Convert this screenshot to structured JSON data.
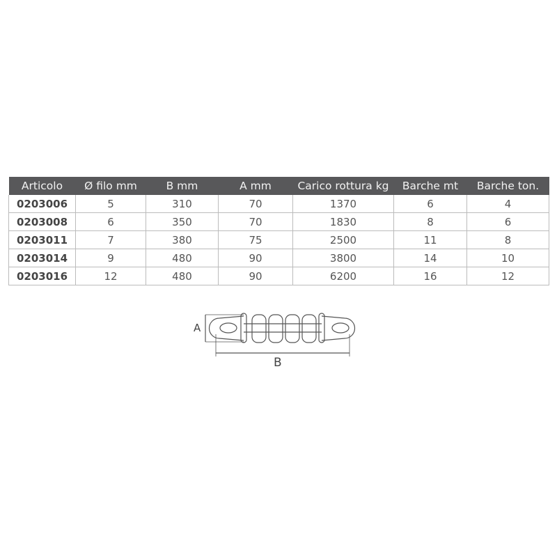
{
  "table": {
    "headers": [
      "Articolo",
      "Ø filo mm",
      "B mm",
      "A mm",
      "Carico rottura kg",
      "Barche mt",
      "Barche ton."
    ],
    "rows": [
      [
        "0203006",
        "5",
        "310",
        "70",
        "1370",
        "6",
        "4"
      ],
      [
        "0203008",
        "6",
        "350",
        "70",
        "1830",
        "8",
        "6"
      ],
      [
        "0203011",
        "7",
        "380",
        "75",
        "2500",
        "11",
        "8"
      ],
      [
        "0203014",
        "9",
        "480",
        "90",
        "3800",
        "14",
        "10"
      ],
      [
        "0203016",
        "12",
        "480",
        "90",
        "6200",
        "16",
        "12"
      ]
    ]
  },
  "drawing": {
    "dim_a_label": "A",
    "dim_b_label": "B"
  },
  "colors": {
    "header_bg": "#58585a",
    "header_text": "#f2f2f2",
    "text": "#555555"
  }
}
